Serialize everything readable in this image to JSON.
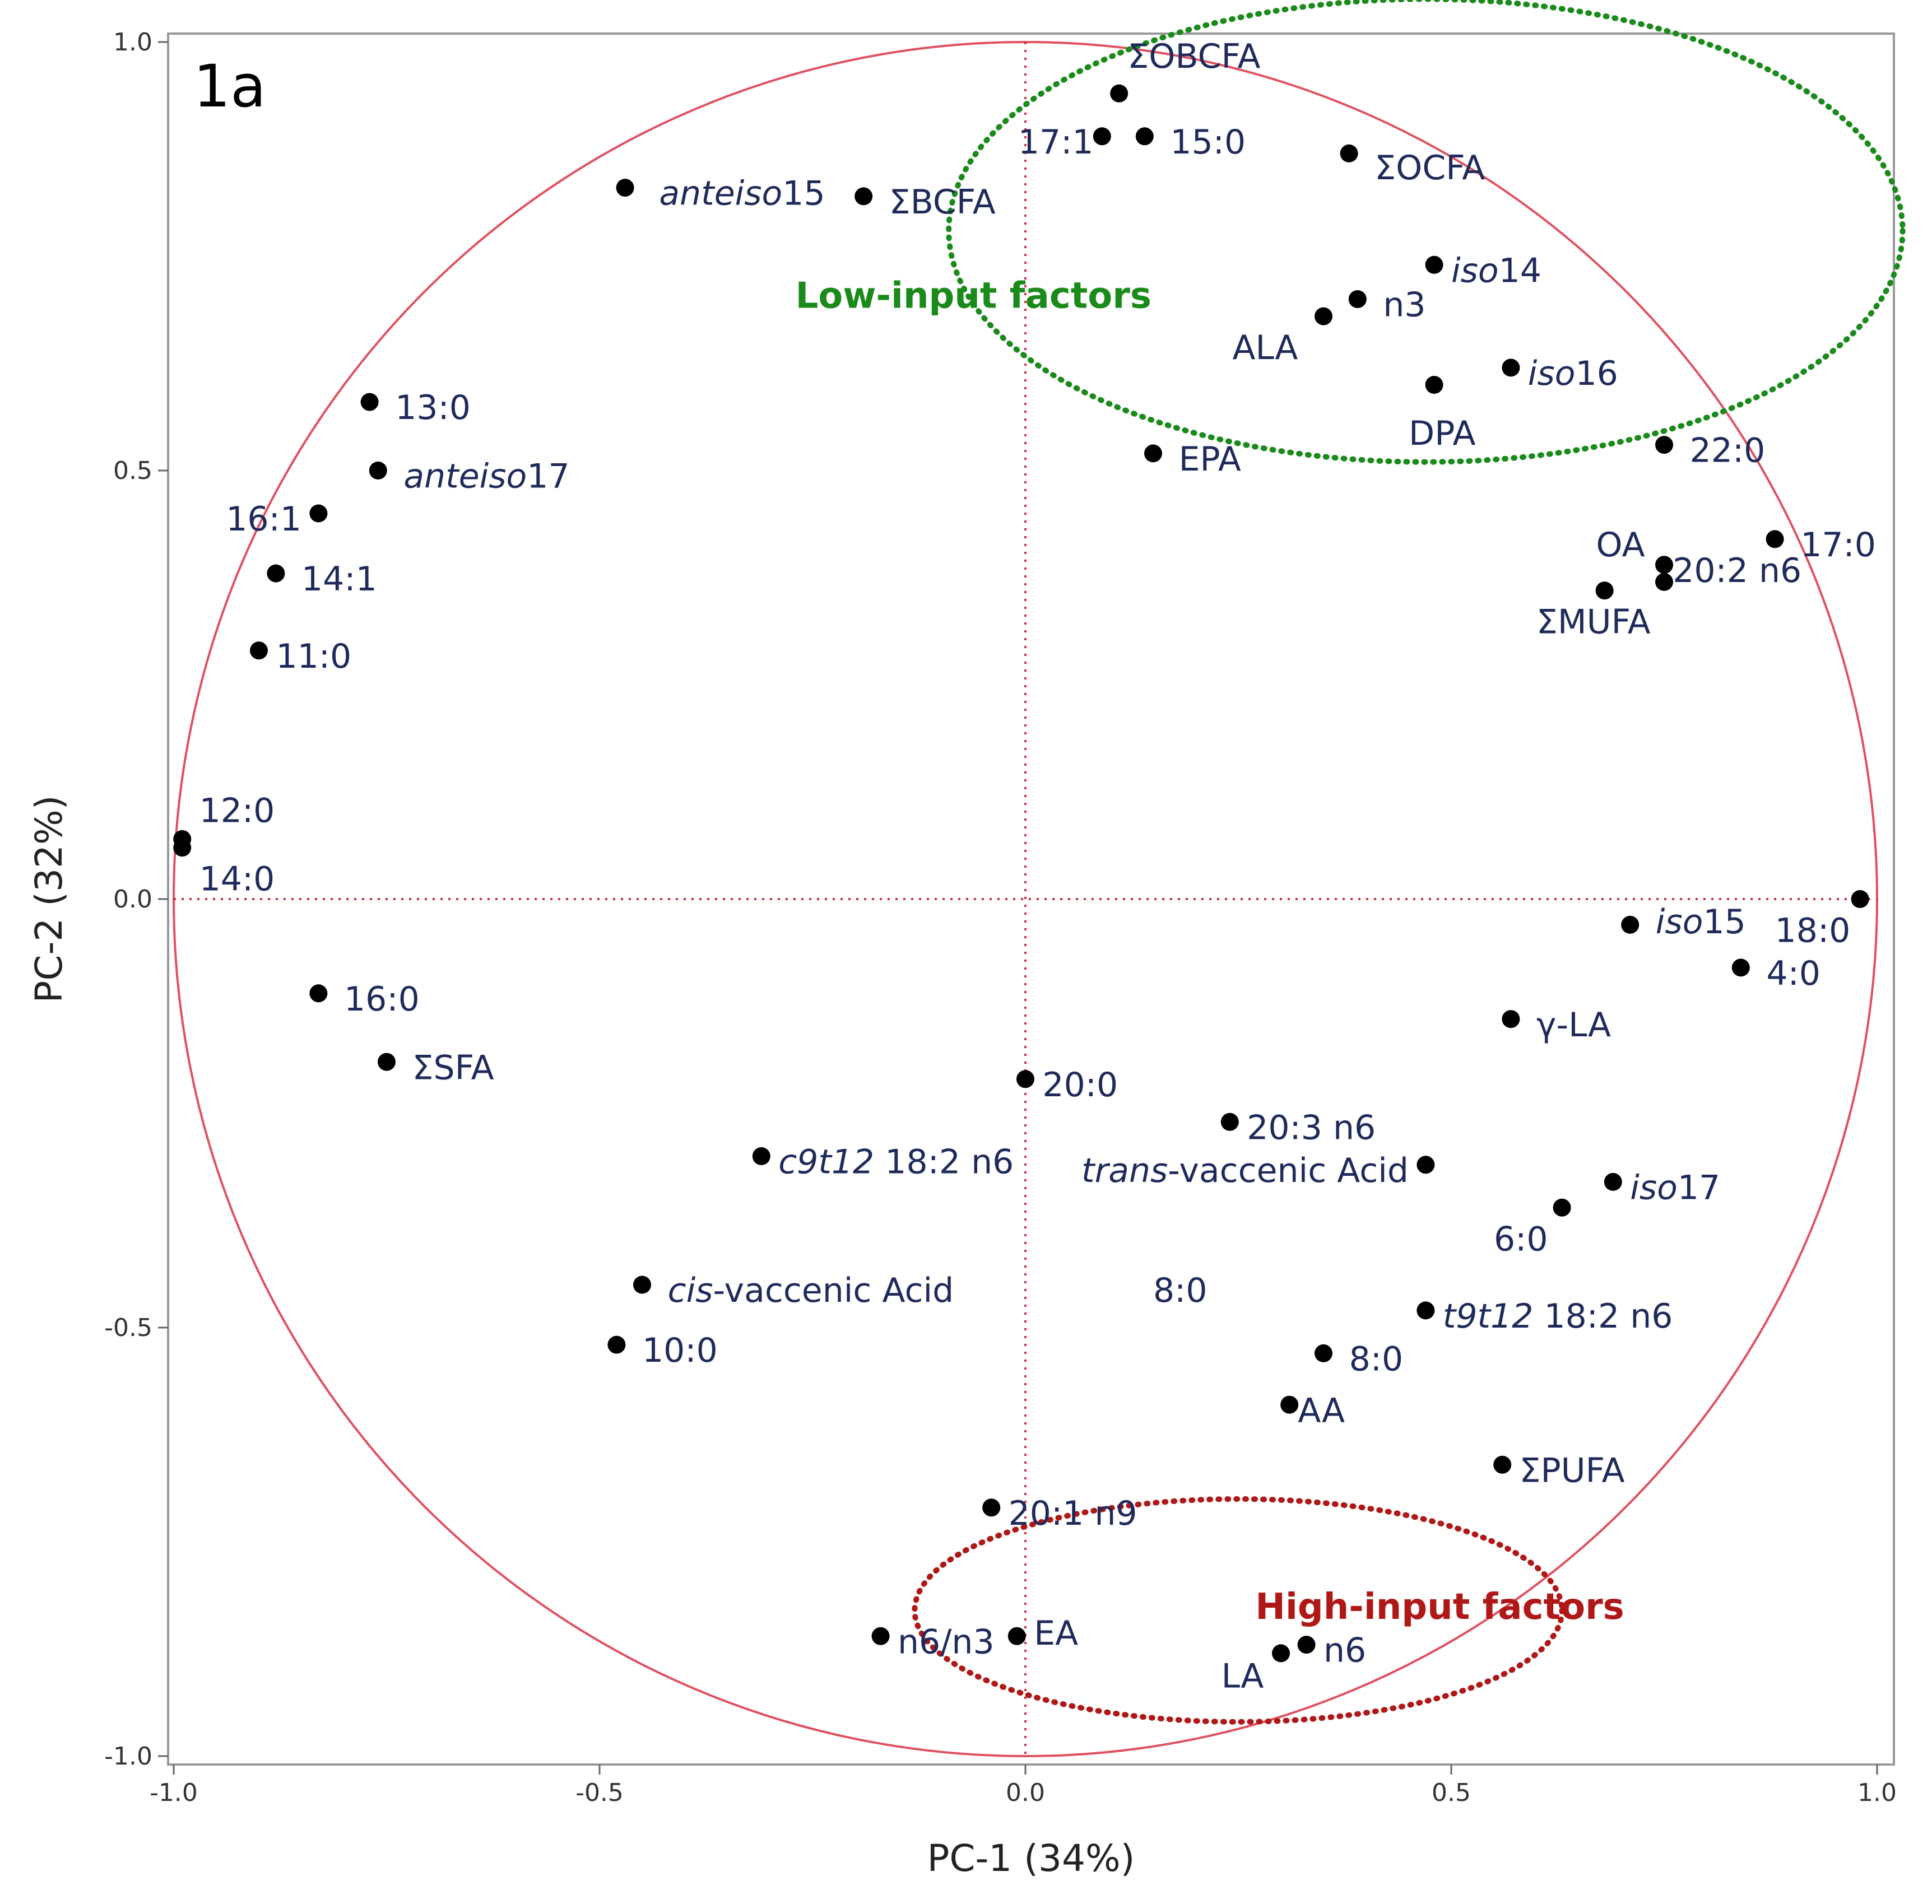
{
  "colors": {
    "circle": "#e05060",
    "zero_lines": "#d03040",
    "low_group": "#1a8a1a",
    "high_group": "#b01818",
    "point": "#000000",
    "label": "#1f2a5a",
    "frame": "#999999"
  },
  "chart_data": {
    "type": "scatter",
    "title": "1a",
    "xlabel": "PC-1 (34%)",
    "ylabel": "PC-2 (32%)",
    "xlim": [
      -1.0,
      1.0
    ],
    "ylim": [
      -1.0,
      1.0
    ],
    "x_ticks": [
      {
        "v": -1.0,
        "label": "-1.0"
      },
      {
        "v": -0.5,
        "label": "-0.5"
      },
      {
        "v": 0.0,
        "label": "0.0"
      },
      {
        "v": 0.5,
        "label": "0.5"
      },
      {
        "v": 1.0,
        "label": "1.0"
      }
    ],
    "y_ticks": [
      {
        "v": -1.0,
        "label": "-1.0"
      },
      {
        "v": -0.5,
        "label": "-0.5"
      },
      {
        "v": 0.0,
        "label": "0.0"
      },
      {
        "v": 0.5,
        "label": "0.5"
      },
      {
        "v": 1.0,
        "label": "1.0"
      }
    ],
    "correlation_circle_radius": 1.0,
    "groups": [
      {
        "name": "Low-input factors",
        "cx": 0.47,
        "cy": 0.78,
        "rx": 0.56,
        "ry": 0.27,
        "color_key": "low_group",
        "label_x": -0.27,
        "label_y": 0.69
      },
      {
        "name": "High-input factors",
        "cx": 0.25,
        "cy": -0.83,
        "rx": 0.38,
        "ry": 0.13,
        "color_key": "high_group",
        "label_x": 0.27,
        "label_y": -0.84
      }
    ],
    "points": [
      {
        "x": 0.11,
        "y": 0.94,
        "name": "ΣOBCFA",
        "italic": "",
        "lx": 0.12,
        "ly": 0.97,
        "anchor": "start"
      },
      {
        "x": 0.09,
        "y": 0.89,
        "name": "17:1",
        "italic": "",
        "lx": 0.08,
        "ly": 0.87,
        "anchor": "end"
      },
      {
        "x": 0.14,
        "y": 0.89,
        "name": "15:0",
        "italic": "",
        "lx": 0.17,
        "ly": 0.87,
        "anchor": "start"
      },
      {
        "x": 0.38,
        "y": 0.87,
        "name": "ΣOCFA",
        "italic": "",
        "lx": 0.41,
        "ly": 0.84,
        "anchor": "start"
      },
      {
        "x": -0.47,
        "y": 0.83,
        "name": "15",
        "italic": "anteiso",
        "lx": -0.43,
        "ly": 0.81,
        "anchor": "start"
      },
      {
        "x": -0.19,
        "y": 0.82,
        "name": "ΣBCFA",
        "italic": "",
        "lx": -0.16,
        "ly": 0.8,
        "anchor": "start"
      },
      {
        "x": 0.48,
        "y": 0.74,
        "name": "14",
        "italic": "iso",
        "lx": 0.5,
        "ly": 0.72,
        "anchor": "start"
      },
      {
        "x": 0.39,
        "y": 0.7,
        "name": "n3",
        "italic": "",
        "lx": 0.42,
        "ly": 0.68,
        "anchor": "start"
      },
      {
        "x": 0.35,
        "y": 0.68,
        "name": "ALA",
        "italic": "",
        "lx": 0.32,
        "ly": 0.63,
        "anchor": "end"
      },
      {
        "x": 0.57,
        "y": 0.62,
        "name": "16",
        "italic": "iso",
        "lx": 0.59,
        "ly": 0.6,
        "anchor": "start"
      },
      {
        "x": 0.48,
        "y": 0.6,
        "name": "DPA",
        "italic": "",
        "lx": 0.45,
        "ly": 0.53,
        "anchor": "start"
      },
      {
        "x": 0.15,
        "y": 0.52,
        "name": "EPA",
        "italic": "",
        "lx": 0.18,
        "ly": 0.5,
        "anchor": "start"
      },
      {
        "x": -0.77,
        "y": 0.58,
        "name": "13:0",
        "italic": "",
        "lx": -0.74,
        "ly": 0.56,
        "anchor": "start"
      },
      {
        "x": -0.76,
        "y": 0.5,
        "name": "17",
        "italic": "anteiso",
        "lx": -0.73,
        "ly": 0.48,
        "anchor": "start"
      },
      {
        "x": -0.83,
        "y": 0.45,
        "name": "16:1",
        "italic": "",
        "lx": -0.85,
        "ly": 0.43,
        "anchor": "end"
      },
      {
        "x": -0.88,
        "y": 0.38,
        "name": "14:1",
        "italic": "",
        "lx": -0.85,
        "ly": 0.36,
        "anchor": "start"
      },
      {
        "x": -0.9,
        "y": 0.29,
        "name": "11:0",
        "italic": "",
        "lx": -0.88,
        "ly": 0.27,
        "anchor": "start"
      },
      {
        "x": 0.75,
        "y": 0.53,
        "name": "22:0",
        "italic": "",
        "lx": 0.78,
        "ly": 0.51,
        "anchor": "start"
      },
      {
        "x": 0.88,
        "y": 0.42,
        "name": "17:0",
        "italic": "",
        "lx": 0.91,
        "ly": 0.4,
        "anchor": "start"
      },
      {
        "x": 0.75,
        "y": 0.39,
        "name": "OA",
        "italic": "",
        "lx": 0.67,
        "ly": 0.4,
        "anchor": "start"
      },
      {
        "x": 0.75,
        "y": 0.37,
        "name": "20:2 n6",
        "italic": "",
        "lx": 0.76,
        "ly": 0.37,
        "anchor": "start"
      },
      {
        "x": 0.68,
        "y": 0.36,
        "name": "ΣMUFA",
        "italic": "",
        "lx": 0.6,
        "ly": 0.31,
        "anchor": "start"
      },
      {
        "x": -0.99,
        "y": 0.07,
        "name": "12:0",
        "italic": "",
        "lx": -0.97,
        "ly": 0.09,
        "anchor": "start"
      },
      {
        "x": -0.99,
        "y": 0.06,
        "name": "14:0",
        "italic": "",
        "lx": -0.97,
        "ly": 0.01,
        "anchor": "start"
      },
      {
        "x": 0.98,
        "y": 0.0,
        "name": "18:0",
        "italic": "",
        "lx": 0.88,
        "ly": -0.05,
        "anchor": "start"
      },
      {
        "x": 0.71,
        "y": -0.03,
        "name": "15",
        "italic": "iso",
        "lx": 0.74,
        "ly": -0.04,
        "anchor": "start"
      },
      {
        "x": 0.84,
        "y": -0.08,
        "name": "4:0",
        "italic": "",
        "lx": 0.87,
        "ly": -0.1,
        "anchor": "start"
      },
      {
        "x": 0.57,
        "y": -0.14,
        "name": "γ-LA",
        "italic": "",
        "lx": 0.6,
        "ly": -0.16,
        "anchor": "start"
      },
      {
        "x": -0.83,
        "y": -0.11,
        "name": "16:0",
        "italic": "",
        "lx": -0.8,
        "ly": -0.13,
        "anchor": "start"
      },
      {
        "x": -0.75,
        "y": -0.19,
        "name": "ΣSFA",
        "italic": "",
        "lx": -0.72,
        "ly": -0.21,
        "anchor": "start"
      },
      {
        "x": 0.0,
        "y": -0.21,
        "name": "20:0",
        "italic": "",
        "lx": 0.02,
        "ly": -0.23,
        "anchor": "start"
      },
      {
        "x": 0.24,
        "y": -0.26,
        "name": "20:3 n6",
        "italic": "",
        "lx": 0.26,
        "ly": -0.28,
        "anchor": "start"
      },
      {
        "x": -0.31,
        "y": -0.3,
        "name": " 18:2 n6",
        "italic": "c9t12",
        "lx": -0.29,
        "ly": -0.32,
        "anchor": "start"
      },
      {
        "x": 0.47,
        "y": -0.31,
        "name": "-vaccenic Acid",
        "italic": "trans",
        "lx": 0.45,
        "ly": -0.33,
        "anchor": "end"
      },
      {
        "x": 0.69,
        "y": -0.33,
        "name": "17",
        "italic": "iso",
        "lx": 0.71,
        "ly": -0.35,
        "anchor": "start"
      },
      {
        "x": 0.63,
        "y": -0.36,
        "name": "6:0",
        "italic": "",
        "lx": 0.55,
        "ly": -0.41,
        "anchor": "start"
      },
      {
        "x": -0.45,
        "y": -0.45,
        "name": "-vaccenic Acid",
        "italic": "cis",
        "lx": -0.42,
        "ly": -0.47,
        "anchor": "start"
      },
      {
        "x": 0.35,
        "y": -0.53,
        "name": "8:0",
        "italic": "",
        "lx": 0.38,
        "ly": -0.55,
        "anchor": "start"
      },
      {
        "x": 0.47,
        "y": -0.48,
        "name": " 18:2 n6",
        "italic": "t9t12",
        "lx": 0.49,
        "ly": -0.5,
        "anchor": "start"
      },
      {
        "x": -0.48,
        "y": -0.52,
        "name": "10:0",
        "italic": "",
        "lx": -0.45,
        "ly": -0.54,
        "anchor": "start"
      },
      {
        "x": 0.31,
        "y": -0.59,
        "name": "AA",
        "italic": "",
        "lx": 0.32,
        "ly": -0.61,
        "anchor": "start"
      },
      {
        "x": 0.56,
        "y": -0.66,
        "name": "ΣPUFA",
        "italic": "",
        "lx": 0.58,
        "ly": -0.68,
        "anchor": "start"
      },
      {
        "x": -0.04,
        "y": -0.71,
        "name": "20:1 n9",
        "italic": "",
        "lx": -0.02,
        "ly": -0.73,
        "anchor": "start"
      },
      {
        "x": -0.17,
        "y": -0.86,
        "name": "n6/n3",
        "italic": "",
        "lx": -0.15,
        "ly": -0.88,
        "anchor": "start"
      },
      {
        "x": -0.01,
        "y": -0.86,
        "name": "EA",
        "italic": "",
        "lx": 0.01,
        "ly": -0.87,
        "anchor": "start"
      },
      {
        "x": 0.3,
        "y": -0.88,
        "name": "LA",
        "italic": "",
        "lx": 0.23,
        "ly": -0.92,
        "anchor": "start"
      },
      {
        "x": 0.33,
        "y": -0.87,
        "name": "n6",
        "italic": "",
        "lx": 0.35,
        "ly": -0.89,
        "anchor": "start"
      }
    ],
    "annotations": [
      {
        "text": "8:0",
        "x": 0.15,
        "y": -0.47
      }
    ]
  }
}
